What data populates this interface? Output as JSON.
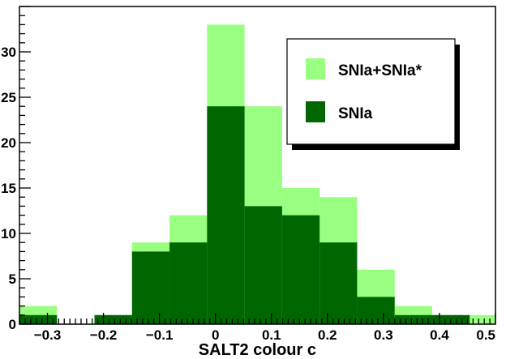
{
  "chart_data": {
    "type": "bar",
    "title": "",
    "xlabel": "SALT2 colour c",
    "ylabel": "",
    "xlim": [
      -0.35,
      0.5
    ],
    "ylim": [
      0,
      35
    ],
    "grid": false,
    "legend_position": "top-right",
    "bin_width": 0.067,
    "bin_starts": [
      -0.35,
      -0.283,
      -0.216,
      -0.149,
      -0.082,
      -0.015,
      0.052,
      0.119,
      0.186,
      0.253,
      0.32,
      0.387,
      0.454
    ],
    "x_ticks": [
      -0.3,
      -0.2,
      -0.1,
      0,
      0.1,
      0.2,
      0.3,
      0.4,
      0.5
    ],
    "x_tick_labels": [
      "−0.3",
      "−0.2",
      "−0.1",
      "0",
      "0.1",
      "0.2",
      "0.3",
      "0.4",
      "0.5"
    ],
    "y_ticks": [
      0,
      5,
      10,
      15,
      20,
      25,
      30
    ],
    "y_tick_labels": [
      "0",
      "5",
      "10",
      "15",
      "20",
      "25",
      "30"
    ],
    "series": [
      {
        "name": "SNIa+SNIa*",
        "color": "#99ff80",
        "values": [
          2,
          0,
          1,
          9,
          12,
          33,
          24,
          15,
          14,
          6,
          2,
          1,
          1
        ]
      },
      {
        "name": "SNIa",
        "color": "#006600",
        "values": [
          1,
          0,
          1,
          8,
          9,
          24,
          13,
          12,
          9,
          3,
          1,
          1,
          0
        ]
      }
    ]
  }
}
